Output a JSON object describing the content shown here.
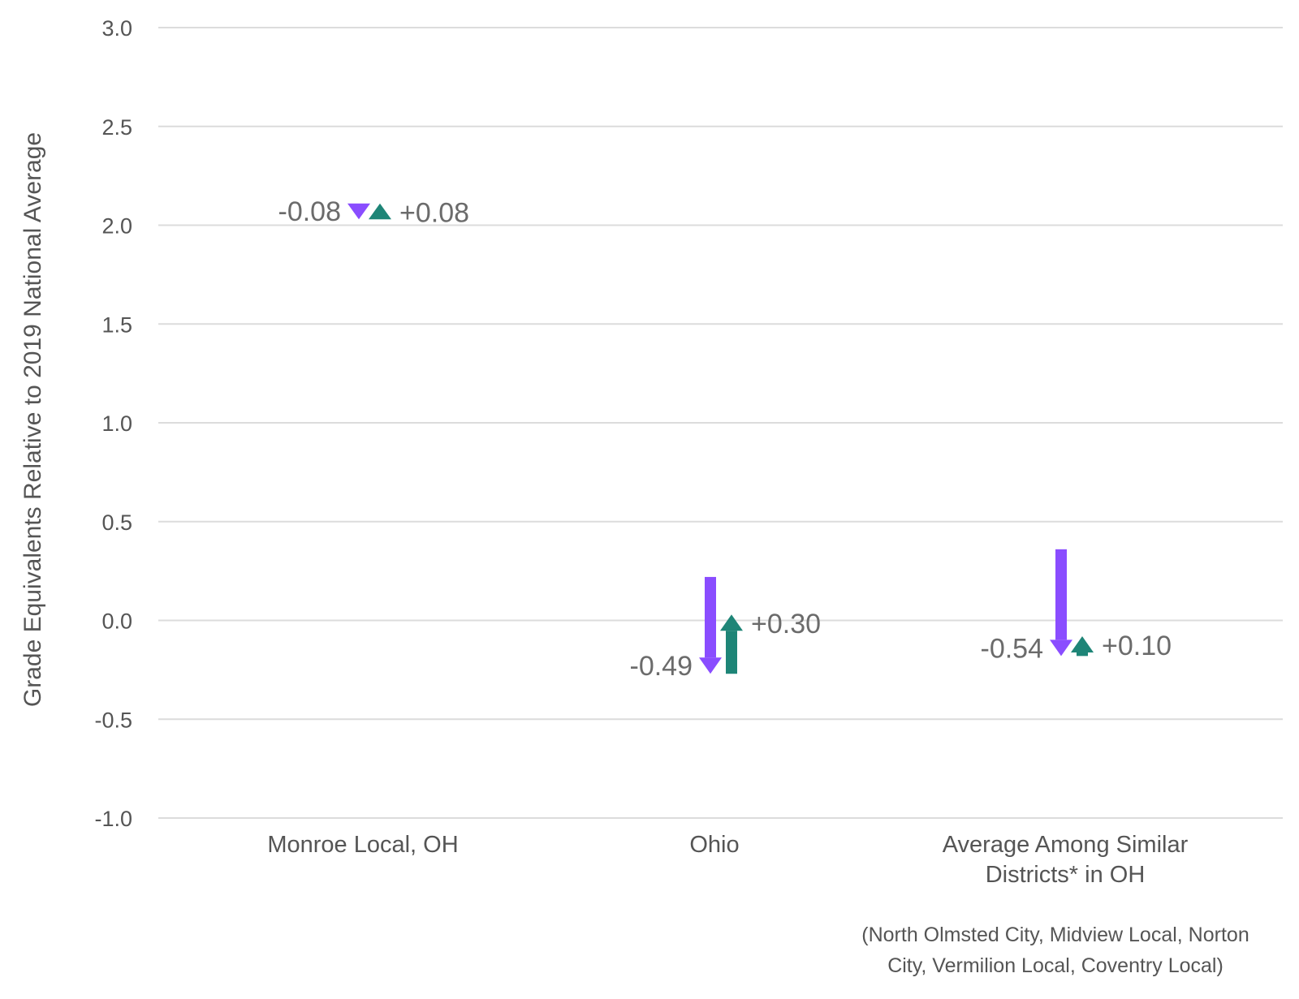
{
  "chart_data": {
    "type": "arrow",
    "ylabel": "Grade Equivalents Relative to 2019 National Average",
    "yticks": [
      "3.0",
      "2.5",
      "2.0",
      "1.5",
      "1.0",
      "0.5",
      "0.0",
      "-0.5",
      "-1.0"
    ],
    "ylim": [
      -1.0,
      3.0
    ],
    "grid": true,
    "colors": {
      "decline": "#8a4dff",
      "recovery": "#1e8577"
    },
    "categories": [
      {
        "label_lines": [
          "Monroe Local, OH"
        ],
        "start": 2.11,
        "decline": -0.08,
        "decline_label": "-0.08",
        "recovery": 0.08,
        "recovery_label": "+0.08"
      },
      {
        "label_lines": [
          "Ohio"
        ],
        "start": 0.22,
        "decline": -0.49,
        "decline_label": "-0.49",
        "recovery": 0.3,
        "recovery_label": "+0.30"
      },
      {
        "label_lines": [
          "Average Among Similar",
          "Districts* in OH"
        ],
        "start": 0.36,
        "decline": -0.54,
        "decline_label": "-0.54",
        "recovery": 0.1,
        "recovery_label": "+0.10"
      }
    ],
    "note_lines": [
      "(North Olmsted City, Midview Local, Norton",
      "City, Vermilion Local, Coventry Local)"
    ]
  }
}
